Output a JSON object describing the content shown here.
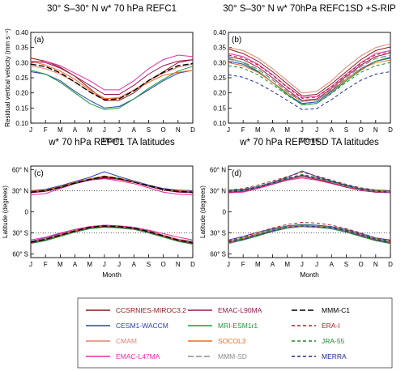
{
  "months": [
    "J",
    "F",
    "M",
    "A",
    "M",
    "J",
    "J",
    "A",
    "S",
    "O",
    "N",
    "D"
  ],
  "styles": {
    "CCSRNIES-MIROC3.2": {
      "color": "#8b1a1a",
      "dash": ""
    },
    "CESM1-WACCM": {
      "color": "#2b3fb8",
      "dash": ""
    },
    "CMAM": {
      "color": "#e5806f",
      "dash": ""
    },
    "EMAC-L47MA": {
      "color": "#ee2aa8",
      "dash": ""
    },
    "EMAC-L90MA": {
      "color": "#9b1550",
      "dash": ""
    },
    "MRI-ESM1r1": {
      "color": "#1a9a3a",
      "dash": ""
    },
    "SOCOL3": {
      "color": "#f06a1e",
      "dash": ""
    },
    "MMM-SD": {
      "color": "#8c8c8c",
      "dash": "7 3"
    },
    "MMM-C1": {
      "color": "#000000",
      "dash": "7 3"
    },
    "ERA-I": {
      "color": "#b02020",
      "dash": "4 3"
    },
    "JRA-55": {
      "color": "#1e8a2e",
      "dash": "4 3"
    },
    "MERRA": {
      "color": "#1e2aa0",
      "dash": "4 3"
    }
  },
  "legend": {
    "col1": [
      "CCSRNIES-MIROC3.2",
      "CESM1-WACCM",
      "CMAM",
      "EMAC-L47MA"
    ],
    "col2": [
      "EMAC-L90MA",
      "MRI-ESM1r1",
      "SOCOL3",
      "MMM-SD"
    ],
    "col3": [
      "MMM-C1",
      "ERA-I",
      "JRA-55",
      "MERRA"
    ]
  },
  "chart_data": [
    {
      "type": "line",
      "panel_label": "(a)",
      "title": "30° S–30° N w* 70 hPa REFC1",
      "xlabel": "Month",
      "ylabel": "Residual vertical velocity (mm s⁻¹)",
      "ylim": [
        0.1,
        0.4
      ],
      "ytick_labels": [
        "0.10",
        "0.15",
        "0.20",
        "0.25",
        "0.30",
        "0.35",
        "0.40"
      ],
      "xtick_labels": [
        "J",
        "F",
        "M",
        "A",
        "M",
        "J",
        "J",
        "A",
        "S",
        "O",
        "N",
        "D"
      ],
      "series": [
        {
          "name": "CCSRNIES-MIROC3.2",
          "values": [
            0.315,
            0.305,
            0.285,
            0.255,
            0.215,
            0.175,
            0.175,
            0.2,
            0.24,
            0.27,
            0.3,
            0.31
          ]
        },
        {
          "name": "CESM1-WACCM",
          "values": [
            0.27,
            0.262,
            0.24,
            0.205,
            0.175,
            0.15,
            0.155,
            0.18,
            0.21,
            0.24,
            0.265,
            0.275
          ]
        },
        {
          "name": "CMAM",
          "values": [
            0.29,
            0.28,
            0.262,
            0.235,
            0.205,
            0.18,
            0.185,
            0.21,
            0.24,
            0.265,
            0.285,
            0.295
          ]
        },
        {
          "name": "EMAC-L47MA",
          "values": [
            0.3,
            0.305,
            0.29,
            0.265,
            0.24,
            0.21,
            0.21,
            0.24,
            0.28,
            0.31,
            0.325,
            0.32
          ]
        },
        {
          "name": "EMAC-L90MA",
          "values": [
            0.305,
            0.3,
            0.282,
            0.255,
            0.225,
            0.195,
            0.195,
            0.225,
            0.262,
            0.29,
            0.305,
            0.31
          ]
        },
        {
          "name": "MRI-ESM1r1",
          "values": [
            0.275,
            0.262,
            0.235,
            0.2,
            0.165,
            0.145,
            0.15,
            0.18,
            0.215,
            0.245,
            0.272,
            0.288
          ]
        },
        {
          "name": "SOCOL3",
          "values": [
            0.305,
            0.292,
            0.272,
            0.245,
            0.21,
            0.182,
            0.182,
            0.208,
            0.235,
            0.258,
            0.268,
            0.275
          ]
        },
        {
          "name": "MMM-C1",
          "values": [
            0.295,
            0.287,
            0.266,
            0.236,
            0.203,
            0.177,
            0.18,
            0.207,
            0.241,
            0.268,
            0.29,
            0.297
          ]
        }
      ]
    },
    {
      "type": "line",
      "panel_label": "(b)",
      "title": "30° S–30° N w* 70hPa REFC1SD +S-RIP",
      "xlabel": "Month",
      "ylabel": "",
      "ylim": [
        0.1,
        0.4
      ],
      "ytick_labels": [
        "0.10",
        "0.15",
        "0.20",
        "0.25",
        "0.30",
        "0.35",
        "0.40"
      ],
      "xtick_labels": [
        "J",
        "F",
        "M",
        "A",
        "M",
        "J",
        "J",
        "A",
        "S",
        "O",
        "N",
        "D"
      ],
      "series": [
        {
          "name": "CCSRNIES-MIROC3.2",
          "values": [
            0.345,
            0.33,
            0.305,
            0.27,
            0.23,
            0.19,
            0.195,
            0.23,
            0.27,
            0.31,
            0.34,
            0.352
          ]
        },
        {
          "name": "CESM1-WACCM",
          "values": [
            0.305,
            0.295,
            0.27,
            0.235,
            0.195,
            0.165,
            0.17,
            0.205,
            0.245,
            0.28,
            0.305,
            0.315
          ]
        },
        {
          "name": "CMAM",
          "values": [
            0.35,
            0.34,
            0.315,
            0.28,
            0.24,
            0.2,
            0.205,
            0.24,
            0.285,
            0.322,
            0.35,
            0.362
          ]
        },
        {
          "name": "EMAC-L47MA",
          "values": [
            0.33,
            0.32,
            0.295,
            0.26,
            0.22,
            0.185,
            0.188,
            0.222,
            0.262,
            0.3,
            0.33,
            0.34
          ]
        },
        {
          "name": "EMAC-L90MA",
          "values": [
            0.32,
            0.31,
            0.285,
            0.25,
            0.21,
            0.175,
            0.18,
            0.215,
            0.255,
            0.292,
            0.32,
            0.332
          ]
        },
        {
          "name": "MRI-ESM1r1",
          "values": [
            0.315,
            0.3,
            0.272,
            0.235,
            0.195,
            0.16,
            0.165,
            0.2,
            0.24,
            0.275,
            0.305,
            0.318
          ]
        },
        {
          "name": "SOCOL3",
          "values": [
            0.3,
            0.29,
            0.268,
            0.235,
            0.2,
            0.172,
            0.176,
            0.208,
            0.245,
            0.278,
            0.3,
            0.308
          ]
        },
        {
          "name": "MMM-SD",
          "values": [
            0.312,
            0.302,
            0.278,
            0.243,
            0.205,
            0.172,
            0.176,
            0.21,
            0.25,
            0.287,
            0.314,
            0.324
          ]
        },
        {
          "name": "ERA-I",
          "values": [
            0.325,
            0.315,
            0.292,
            0.258,
            0.218,
            0.182,
            0.186,
            0.22,
            0.26,
            0.298,
            0.326,
            0.336
          ]
        },
        {
          "name": "JRA-55",
          "values": [
            0.29,
            0.282,
            0.26,
            0.228,
            0.192,
            0.162,
            0.165,
            0.198,
            0.235,
            0.268,
            0.29,
            0.3
          ]
        },
        {
          "name": "MERRA",
          "values": [
            0.26,
            0.252,
            0.232,
            0.205,
            0.175,
            0.145,
            0.148,
            0.178,
            0.212,
            0.242,
            0.262,
            0.27
          ]
        }
      ]
    },
    {
      "type": "line",
      "panel_label": "(c)",
      "title": "w* 70 hPa REFC1 TA latitudes",
      "xlabel": "Month",
      "ylabel": "Latitude (degrees)",
      "ylim": [
        -65,
        65
      ],
      "yticks": [
        60,
        30,
        0,
        -30,
        -60
      ],
      "ytick_labels": [
        "60° N",
        "30° N",
        "0",
        "30° S",
        "60° S"
      ],
      "reference_lines": [
        30,
        -30
      ],
      "xtick_labels": [
        "J",
        "F",
        "M",
        "A",
        "M",
        "J",
        "J",
        "A",
        "S",
        "O",
        "N",
        "D"
      ],
      "series": [
        {
          "name": "CCSRNIES-MIROC3.2",
          "north": [
            29,
            31,
            36,
            41,
            46,
            49,
            47,
            43,
            38,
            33,
            30,
            29
          ],
          "south": [
            -44,
            -39,
            -33,
            -27,
            -23,
            -21,
            -22,
            -24,
            -28,
            -34,
            -40,
            -44
          ]
        },
        {
          "name": "CESM1-WACCM",
          "north": [
            30,
            32,
            37,
            43,
            49,
            57,
            50,
            44,
            38,
            33,
            31,
            30
          ],
          "south": [
            -42,
            -37,
            -31,
            -25,
            -21,
            -19,
            -20,
            -22,
            -27,
            -33,
            -39,
            -42
          ]
        },
        {
          "name": "CMAM",
          "north": [
            28,
            30,
            35,
            40,
            45,
            48,
            46,
            42,
            37,
            32,
            29,
            28
          ],
          "south": [
            -43,
            -38,
            -32,
            -26,
            -22,
            -20,
            -21,
            -23,
            -27,
            -33,
            -39,
            -43
          ]
        },
        {
          "name": "EMAC-L47MA",
          "north": [
            24,
            26,
            33,
            40,
            45,
            47,
            44,
            40,
            34,
            28,
            25,
            24
          ],
          "south": [
            -40,
            -36,
            -30,
            -25,
            -21,
            -19,
            -20,
            -22,
            -26,
            -31,
            -36,
            -40
          ]
        },
        {
          "name": "EMAC-L90MA",
          "north": [
            27,
            29,
            34,
            40,
            45,
            48,
            46,
            42,
            36,
            31,
            28,
            27
          ],
          "south": [
            -44,
            -40,
            -34,
            -28,
            -23,
            -21,
            -22,
            -24,
            -29,
            -35,
            -41,
            -45
          ]
        },
        {
          "name": "MRI-ESM1r1",
          "north": [
            28,
            30,
            35,
            41,
            46,
            50,
            47,
            43,
            37,
            32,
            29,
            28
          ],
          "south": [
            -45,
            -41,
            -35,
            -29,
            -24,
            -22,
            -23,
            -25,
            -30,
            -36,
            -42,
            -46
          ]
        },
        {
          "name": "SOCOL3",
          "north": [
            29,
            31,
            36,
            42,
            47,
            51,
            48,
            43,
            37,
            32,
            30,
            29
          ],
          "south": [
            -43,
            -39,
            -33,
            -27,
            -22,
            -20,
            -21,
            -23,
            -28,
            -34,
            -40,
            -43
          ]
        },
        {
          "name": "MMM-C1",
          "north": [
            28,
            30,
            35,
            41,
            46,
            50,
            47,
            42,
            37,
            32,
            29,
            28
          ],
          "south": [
            -43,
            -39,
            -33,
            -27,
            -22,
            -20,
            -21,
            -23,
            -28,
            -34,
            -40,
            -44
          ]
        }
      ]
    },
    {
      "type": "line",
      "panel_label": "(d)",
      "title": "w* 70 hPa REFC1SD TA latitudes",
      "xlabel": "Month",
      "ylabel": "Latitude (degrees)",
      "ylim": [
        -65,
        65
      ],
      "yticks": [
        60,
        30,
        0,
        -30,
        -60
      ],
      "ytick_labels": [
        "60° N",
        "30° N",
        "0",
        "30° S",
        "60° S"
      ],
      "reference_lines": [
        30,
        -30
      ],
      "xtick_labels": [
        "J",
        "F",
        "M",
        "A",
        "M",
        "J",
        "J",
        "A",
        "S",
        "O",
        "N",
        "D"
      ],
      "series": [
        {
          "name": "CCSRNIES-MIROC3.2",
          "north": [
            30,
            31,
            35,
            40,
            46,
            52,
            47,
            42,
            36,
            32,
            30,
            29
          ],
          "south": [
            -43,
            -38,
            -32,
            -26,
            -22,
            -20,
            -21,
            -23,
            -27,
            -33,
            -39,
            -43
          ]
        },
        {
          "name": "CESM1-WACCM",
          "north": [
            31,
            32,
            36,
            42,
            49,
            58,
            50,
            44,
            38,
            33,
            31,
            30
          ],
          "south": [
            -40,
            -35,
            -29,
            -24,
            -20,
            -18,
            -19,
            -21,
            -25,
            -31,
            -37,
            -40
          ]
        },
        {
          "name": "CMAM",
          "north": [
            29,
            30,
            34,
            40,
            46,
            50,
            47,
            42,
            36,
            31,
            29,
            28
          ],
          "south": [
            -42,
            -37,
            -31,
            -25,
            -21,
            -19,
            -20,
            -22,
            -26,
            -32,
            -38,
            -42
          ]
        },
        {
          "name": "EMAC-L47MA",
          "north": [
            27,
            28,
            33,
            39,
            45,
            48,
            45,
            40,
            35,
            30,
            28,
            27
          ],
          "south": [
            -45,
            -40,
            -34,
            -28,
            -23,
            -21,
            -22,
            -24,
            -29,
            -35,
            -41,
            -45
          ]
        },
        {
          "name": "EMAC-L90MA",
          "north": [
            28,
            29,
            34,
            40,
            46,
            50,
            46,
            41,
            35,
            31,
            28,
            28
          ],
          "south": [
            -44,
            -39,
            -33,
            -27,
            -22,
            -20,
            -21,
            -23,
            -28,
            -34,
            -40,
            -44
          ]
        },
        {
          "name": "MRI-ESM1r1",
          "north": [
            29,
            30,
            35,
            41,
            47,
            51,
            48,
            43,
            37,
            32,
            30,
            29
          ],
          "south": [
            -44,
            -40,
            -34,
            -28,
            -23,
            -21,
            -22,
            -24,
            -29,
            -35,
            -41,
            -45
          ]
        },
        {
          "name": "SOCOL3",
          "north": [
            30,
            31,
            35,
            41,
            47,
            51,
            48,
            42,
            36,
            32,
            30,
            29
          ],
          "south": [
            -42,
            -38,
            -32,
            -26,
            -22,
            -20,
            -21,
            -23,
            -27,
            -33,
            -39,
            -42
          ]
        },
        {
          "name": "MMM-SD",
          "north": [
            29,
            30,
            35,
            41,
            47,
            51,
            48,
            42,
            36,
            31,
            29,
            28
          ],
          "south": [
            -43,
            -38,
            -32,
            -26,
            -22,
            -20,
            -21,
            -23,
            -27,
            -33,
            -39,
            -43
          ]
        },
        {
          "name": "ERA-I",
          "north": [
            31,
            33,
            38,
            44,
            50,
            56,
            51,
            45,
            39,
            34,
            31,
            30
          ],
          "south": [
            -41,
            -36,
            -29,
            -23,
            -18,
            -15,
            -16,
            -19,
            -24,
            -30,
            -37,
            -41
          ]
        },
        {
          "name": "JRA-55",
          "north": [
            30,
            31,
            36,
            42,
            48,
            53,
            49,
            44,
            38,
            33,
            30,
            29
          ],
          "south": [
            -42,
            -37,
            -31,
            -25,
            -20,
            -18,
            -19,
            -22,
            -26,
            -32,
            -38,
            -42
          ]
        },
        {
          "name": "MERRA",
          "north": [
            29,
            30,
            35,
            41,
            47,
            52,
            48,
            43,
            37,
            32,
            29,
            28
          ],
          "south": [
            -43,
            -39,
            -33,
            -27,
            -22,
            -20,
            -21,
            -23,
            -27,
            -33,
            -39,
            -43
          ]
        }
      ]
    }
  ]
}
